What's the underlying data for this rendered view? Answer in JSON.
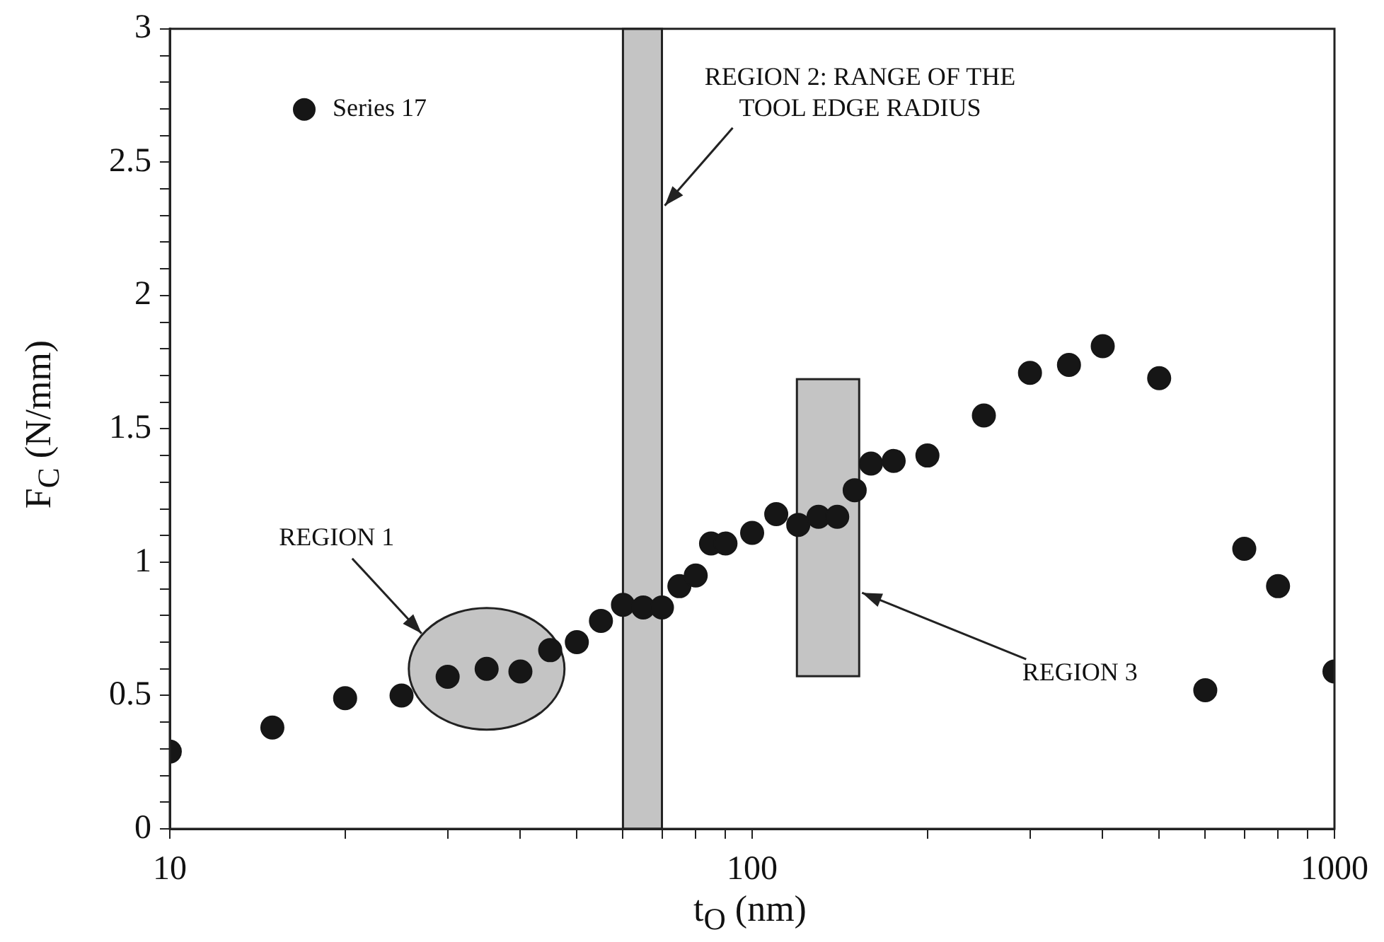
{
  "chart_data": {
    "type": "scatter",
    "xlabel": "t$_{O}$ (nm)",
    "ylabel": "F$_{C}$ (N/mm)",
    "x": [
      10,
      15,
      20,
      25,
      30,
      35,
      40,
      45,
      50,
      55,
      60,
      65,
      70,
      75,
      80,
      85,
      90,
      100,
      110,
      120,
      130,
      140,
      150,
      160,
      175,
      200,
      250,
      300,
      350,
      400,
      500,
      600,
      700,
      800,
      1000
    ],
    "series": [
      {
        "name": "Series 17",
        "color": "#161616",
        "values": [
          0.29,
          0.38,
          0.49,
          0.5,
          0.57,
          0.6,
          0.59,
          0.67,
          0.7,
          0.78,
          0.84,
          0.83,
          0.83,
          0.91,
          0.95,
          1.07,
          1.07,
          1.11,
          1.18,
          1.14,
          1.17,
          1.17,
          1.27,
          1.37,
          1.38,
          1.4,
          1.55,
          1.71,
          1.74,
          1.81,
          1.69,
          0.52,
          1.05,
          0.91,
          0.59
        ]
      }
    ],
    "log": "x",
    "xlim": [
      10,
      1000
    ],
    "xticks": [
      10,
      {
        "value": 20,
        "label": null
      },
      {
        "value": 30,
        "label": null
      },
      {
        "value": 40,
        "label": null
      },
      {
        "value": 50,
        "label": null
      },
      {
        "value": 60,
        "label": null
      },
      {
        "value": 70,
        "label": null
      },
      {
        "value": 80,
        "label": null
      },
      {
        "value": 90,
        "label": null
      },
      100,
      {
        "value": 200,
        "label": null
      },
      {
        "value": 300,
        "label": null
      },
      {
        "value": 400,
        "label": null
      },
      {
        "value": 500,
        "label": null
      },
      {
        "value": 600,
        "label": null
      },
      {
        "value": 700,
        "label": null
      },
      {
        "value": 800,
        "label": null
      },
      {
        "value": 900,
        "label": null
      },
      1000
    ],
    "ylim": [
      0,
      3
    ],
    "yticks": [
      0,
      {
        "value": 0.1,
        "label": null
      },
      {
        "value": 0.2,
        "label": null
      },
      {
        "value": 0.3,
        "label": null
      },
      {
        "value": 0.4,
        "label": null
      },
      0.5,
      {
        "value": 0.6,
        "label": null
      },
      {
        "value": 0.7,
        "label": null
      },
      {
        "value": 0.8,
        "label": null
      },
      {
        "value": 0.9,
        "label": null
      },
      1,
      {
        "value": 1.1,
        "label": null
      },
      {
        "value": 1.2,
        "label": null
      },
      {
        "value": 1.3,
        "label": null
      },
      {
        "value": 1.4,
        "label": null
      },
      1.5,
      {
        "value": 1.6,
        "label": null
      },
      {
        "value": 1.7,
        "label": null
      },
      {
        "value": 1.8,
        "label": null
      },
      {
        "value": 1.9,
        "label": null
      },
      2,
      {
        "value": 2.1,
        "label": null
      },
      {
        "value": 2.2,
        "label": null
      },
      {
        "value": 2.3,
        "label": null
      },
      {
        "value": 2.4,
        "label": null
      },
      2.5,
      {
        "value": 2.6,
        "label": null
      },
      {
        "value": 2.7,
        "label": null
      },
      {
        "value": 2.8,
        "label": null
      },
      {
        "value": 2.9,
        "label": null
      },
      3
    ],
    "bands": [
      {
        "axis": "x",
        "from": 60,
        "to": 70,
        "label": "REGION 2: RANGE OF THE TOOL EDGE RADIUS",
        "color": "#c4c4c4"
      }
    ],
    "annotations": [
      "REGION 1",
      "REGION 3"
    ],
    "marker": "circle",
    "grid": false,
    "legend": "top left"
  }
}
